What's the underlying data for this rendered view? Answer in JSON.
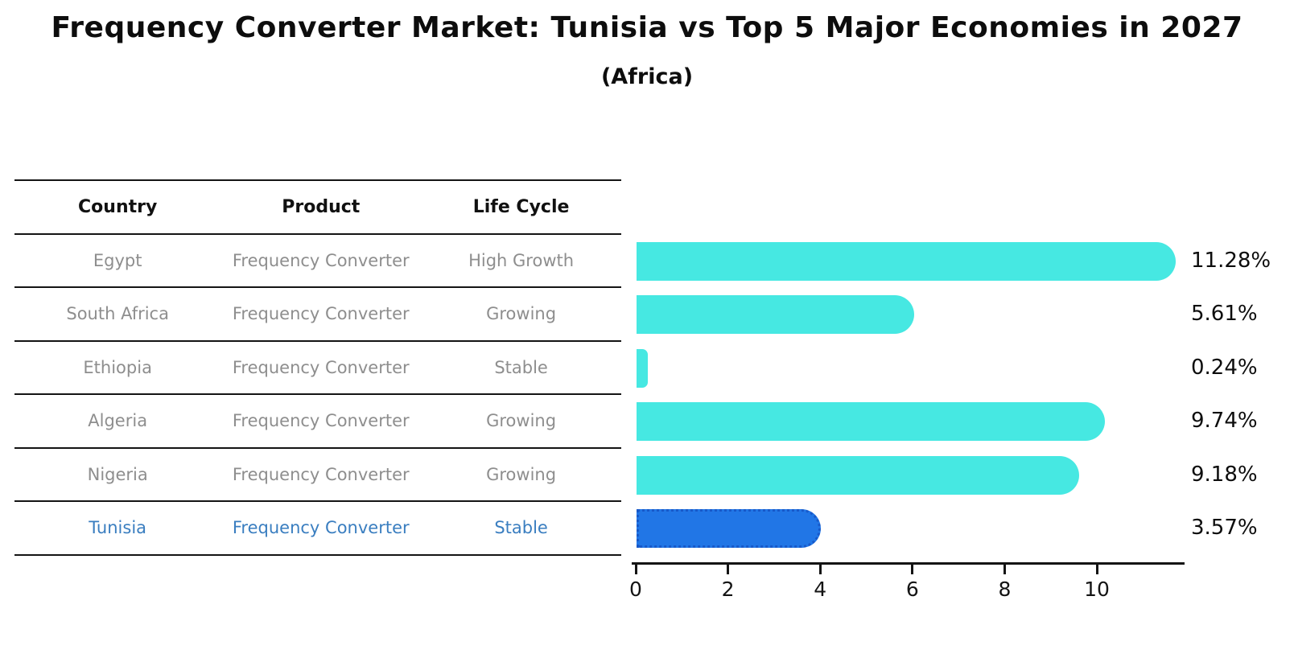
{
  "header": {
    "title": "Frequency Converter Market: Tunisia vs Top 5 Major Economies in 2027",
    "subtitle": "(Africa)"
  },
  "table": {
    "columns": [
      "Country",
      "Product",
      "Life Cycle"
    ],
    "rows": [
      {
        "country": "Egypt",
        "product": "Frequency Converter",
        "life_cycle": "High Growth"
      },
      {
        "country": "South Africa",
        "product": "Frequency Converter",
        "life_cycle": "Growing"
      },
      {
        "country": "Ethiopia",
        "product": "Frequency Converter",
        "life_cycle": "Stable"
      },
      {
        "country": "Algeria",
        "product": "Frequency Converter",
        "life_cycle": "Growing"
      },
      {
        "country": "Nigeria",
        "product": "Frequency Converter",
        "life_cycle": "Growing"
      },
      {
        "country": "Tunisia",
        "product": "Frequency Converter",
        "life_cycle": "Stable"
      }
    ],
    "highlight_row": "Tunisia"
  },
  "chart_data": {
    "type": "bar",
    "orientation": "horizontal",
    "categories": [
      "Egypt",
      "South Africa",
      "Ethiopia",
      "Algeria",
      "Nigeria",
      "Tunisia"
    ],
    "values": [
      11.28,
      5.61,
      0.24,
      9.74,
      9.18,
      3.57
    ],
    "value_labels": [
      "11.28%",
      "5.61%",
      "0.24%",
      "9.74%",
      "9.18%",
      "3.57%"
    ],
    "highlight_index": 5,
    "xticks": [
      0,
      2,
      4,
      6,
      8,
      10
    ],
    "xlim": [
      0,
      11.9
    ],
    "grid": false,
    "legend": "none",
    "bar_color": "#46e8e2",
    "highlight_color": "#2176e6",
    "highlight_border_color": "#1859c9",
    "axis_color": "#141414",
    "label_color": "#0d0d0d"
  }
}
